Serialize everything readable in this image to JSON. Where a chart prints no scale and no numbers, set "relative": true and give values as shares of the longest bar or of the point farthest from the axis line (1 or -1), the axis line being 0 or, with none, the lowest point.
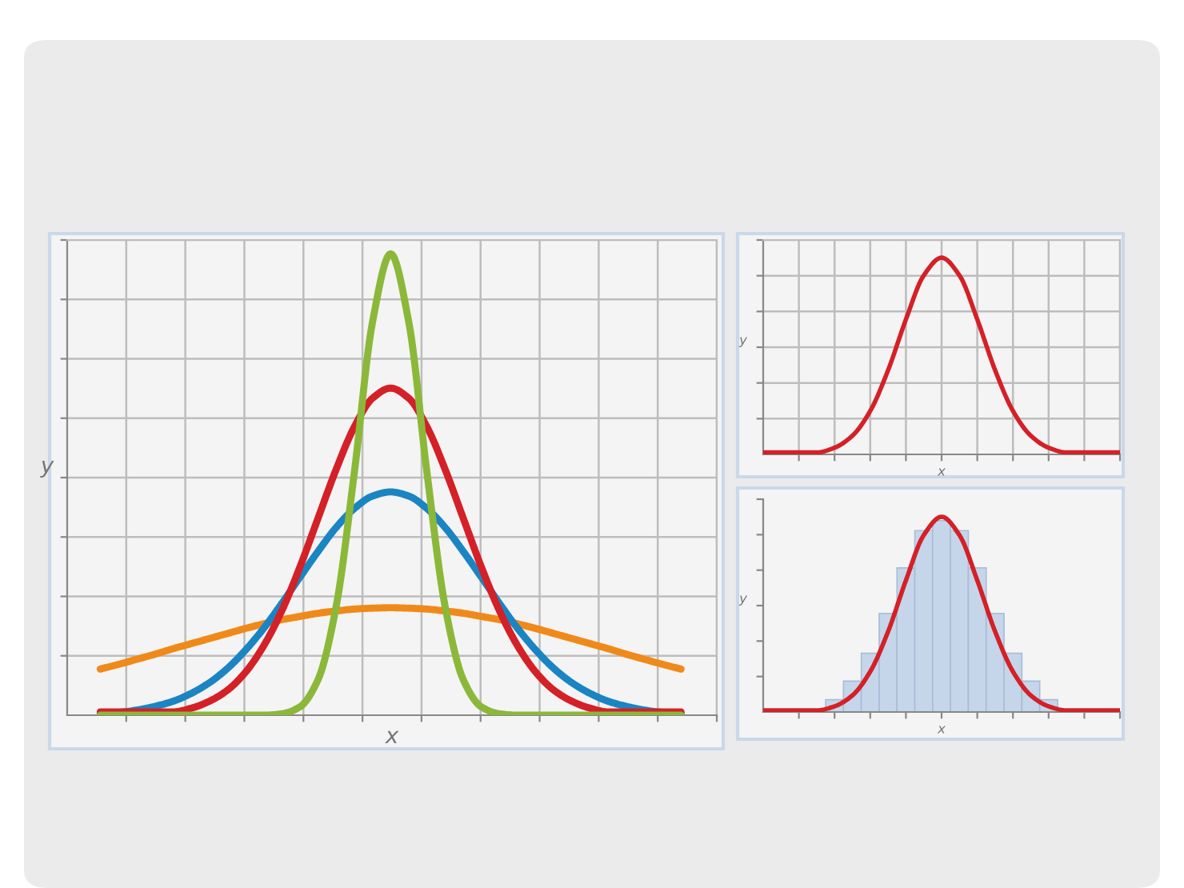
{
  "chart_data": [
    {
      "type": "line",
      "relative": true,
      "grid": true,
      "xlabel": "x",
      "ylabel": "y",
      "categories": [
        null,
        null,
        null,
        null,
        null,
        null,
        null,
        null,
        null,
        null,
        null,
        null,
        null,
        null,
        null,
        null,
        null,
        null,
        null,
        null,
        null,
        null,
        null,
        null,
        null,
        null,
        null,
        null,
        null,
        null,
        null,
        null,
        null
      ],
      "series": [
        {
          "color": "#ef8a1a",
          "values": [
            0.1,
            0.11,
            0.121,
            0.132,
            0.144,
            0.155,
            0.166,
            0.177,
            0.188,
            0.198,
            0.207,
            0.214,
            0.221,
            0.226,
            0.23,
            0.232,
            0.233,
            0.232,
            0.23,
            0.226,
            0.221,
            0.214,
            0.207,
            0.198,
            0.188,
            0.177,
            0.166,
            0.155,
            0.144,
            0.132,
            0.121,
            0.11,
            0.1
          ]
        },
        {
          "color": "#1a85c2",
          "values": [
            0.004,
            0.006,
            0.011,
            0.019,
            0.03,
            0.047,
            0.07,
            0.101,
            0.141,
            0.188,
            0.242,
            0.299,
            0.355,
            0.407,
            0.448,
            0.475,
            0.484,
            0.475,
            0.448,
            0.407,
            0.355,
            0.299,
            0.242,
            0.188,
            0.141,
            0.101,
            0.07,
            0.047,
            0.03,
            0.019,
            0.011,
            0.006,
            0.004
          ]
        },
        {
          "color": "#d42027",
          "values": [
            0.007,
            0.007,
            0.007,
            0.007,
            0.007,
            0.015,
            0.03,
            0.054,
            0.093,
            0.15,
            0.226,
            0.321,
            0.427,
            0.533,
            0.625,
            0.687,
            0.709,
            0.687,
            0.625,
            0.533,
            0.427,
            0.321,
            0.226,
            0.15,
            0.093,
            0.054,
            0.03,
            0.015,
            0.007,
            0.007,
            0.007,
            0.007,
            0.007
          ]
        },
        {
          "color": "#8cb83a",
          "values": [
            0,
            0,
            0,
            0,
            0,
            0,
            0,
            0,
            0,
            0,
            0.003,
            0.018,
            0.077,
            0.236,
            0.526,
            0.852,
            1,
            0.852,
            0.526,
            0.236,
            0.077,
            0.018,
            0.003,
            0,
            0,
            0,
            0,
            0,
            0,
            0,
            0,
            0,
            0
          ]
        }
      ]
    },
    {
      "type": "line",
      "relative": true,
      "grid": true,
      "xlabel": "x",
      "ylabel": "y",
      "categories": [
        null,
        null,
        null,
        null,
        null,
        null,
        null,
        null,
        null,
        null,
        null,
        null,
        null,
        null,
        null,
        null,
        null,
        null,
        null,
        null,
        null
      ],
      "series": [
        {
          "color": "#d42027",
          "values": [
            0.01,
            0.01,
            0.01,
            0.01,
            0.034,
            0.095,
            0.221,
            0.428,
            0.686,
            0.91,
            1,
            0.91,
            0.686,
            0.428,
            0.221,
            0.095,
            0.034,
            0.01,
            0.01,
            0.01,
            0.01
          ]
        }
      ]
    },
    {
      "type": "bar",
      "relative": true,
      "grid": false,
      "xlabel": "x",
      "ylabel": "y",
      "categories": [
        null,
        null,
        null,
        null,
        null,
        null,
        null,
        null,
        null,
        null,
        null,
        null,
        null,
        null,
        null,
        null,
        null,
        null,
        null,
        null,
        null
      ],
      "series": [
        {
          "type": "bar",
          "color": "#c5d6ea",
          "values": [
            null,
            null,
            null,
            null,
            0.063,
            0.158,
            0.301,
            0.505,
            0.738,
            0.929,
            0.98,
            0.929,
            0.738,
            0.505,
            0.301,
            0.158,
            0.063,
            null,
            null,
            null,
            null
          ]
        },
        {
          "type": "line",
          "color": "#d42027",
          "values": [
            0.008,
            0.008,
            0.008,
            0.008,
            0.029,
            0.085,
            0.207,
            0.412,
            0.674,
            0.906,
            1,
            0.906,
            0.674,
            0.412,
            0.207,
            0.085,
            0.029,
            0.008,
            0.008,
            0.008,
            0.008
          ]
        }
      ]
    }
  ]
}
